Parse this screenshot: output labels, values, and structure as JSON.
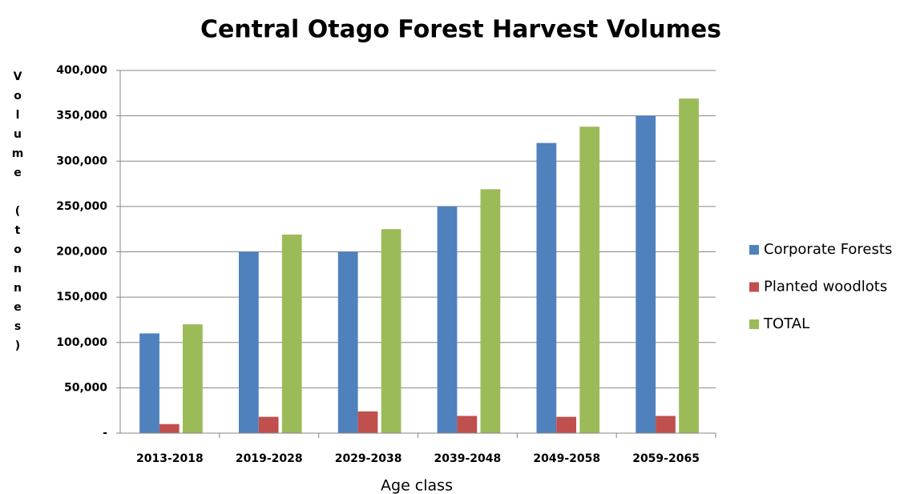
{
  "chart_data": {
    "type": "bar",
    "title": "Central Otago Forest Harvest Volumes",
    "x_label": "Age class",
    "y_label": "Volume (tonnes)",
    "categories": [
      "2013-2018",
      "2019-2028",
      "2029-2038",
      "2039-2048",
      "2049-2058",
      "2059-2065"
    ],
    "series": [
      {
        "name": "Corporate Forests",
        "color": "#4f81bd",
        "values": [
          110000,
          200000,
          200000,
          250000,
          320000,
          350000
        ]
      },
      {
        "name": "Planted woodlots",
        "color": "#c0504d",
        "values": [
          10000,
          18000,
          24000,
          19000,
          18000,
          19000
        ]
      },
      {
        "name": "TOTAL",
        "color": "#9bbb59",
        "values": [
          120000,
          219000,
          225000,
          269000,
          338000,
          369000
        ]
      }
    ],
    "ylim": [
      0,
      400000
    ],
    "yticks": [
      {
        "value": 0,
        "label": "-"
      },
      {
        "value": 50000,
        "label": "50,000"
      },
      {
        "value": 100000,
        "label": "100,000"
      },
      {
        "value": 150000,
        "label": "150,000"
      },
      {
        "value": 200000,
        "label": "200,000"
      },
      {
        "value": 250000,
        "label": "250,000"
      },
      {
        "value": 300000,
        "label": "300,000"
      },
      {
        "value": 350000,
        "label": "350,000"
      },
      {
        "value": 400000,
        "label": "400,000"
      }
    ],
    "grid": true,
    "legend": "right"
  }
}
